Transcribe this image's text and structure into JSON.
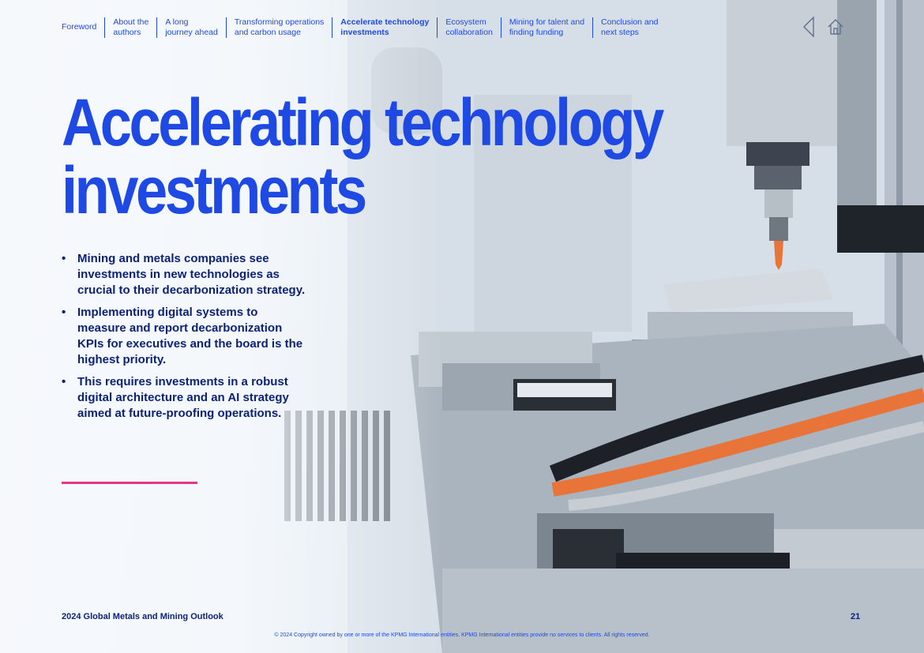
{
  "nav": {
    "items": [
      {
        "label": "Foreword",
        "active": false
      },
      {
        "label": "About the\nauthors",
        "active": false
      },
      {
        "label": "A long\njourney ahead",
        "active": false
      },
      {
        "label": "Transforming operations\nand carbon usage",
        "active": false
      },
      {
        "label": "Accelerate technology\ninvestments",
        "active": true
      },
      {
        "label": "Ecosystem\ncollaboration",
        "active": false
      },
      {
        "label": "Mining for talent and\nfinding funding",
        "active": false
      },
      {
        "label": "Conclusion and\nnext steps",
        "active": false
      }
    ],
    "icons": [
      "chevron-left-icon",
      "home-icon"
    ]
  },
  "page": {
    "title_line1": "Accelerating technology",
    "title_line2": "investments",
    "bullets": [
      "Mining and metals companies see investments in new technologies as crucial to their decarbonization strategy.",
      "Implementing digital systems to measure and report decarbonization KPIs for executives and the board is the highest priority.",
      "This requires investments in a robust digital architecture and an AI strategy aimed at future-proofing operations."
    ],
    "bullet_symbol": "•"
  },
  "footer": {
    "publication": "2024 Global Metals and Mining Outlook",
    "page_number": "21",
    "copyright": "© 2024 Copyright owned by one or more of the KPMG International entities. KPMG International entities provide no services to clients. All rights reserved."
  },
  "colors": {
    "brand_blue": "#1e49e2",
    "dark_blue": "#0c2375",
    "accent_pink": "#e6348a",
    "cable_orange": "#e8743a"
  }
}
